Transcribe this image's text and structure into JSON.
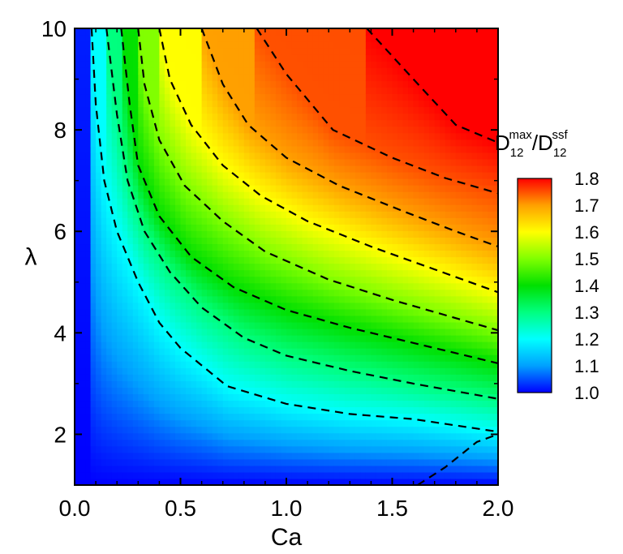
{
  "chart_data": {
    "type": "heatmap",
    "title": "",
    "xlabel": "Ca",
    "ylabel": "λ",
    "xlim": [
      0.0,
      2.0
    ],
    "ylim": [
      1,
      10
    ],
    "x_ticks": [
      "0.0",
      "0.5",
      "1.0",
      "1.5",
      "2.0"
    ],
    "x_tick_values": [
      0.0,
      0.5,
      1.0,
      1.5,
      2.0
    ],
    "y_ticks": [
      "2",
      "4",
      "6",
      "8",
      "10"
    ],
    "y_tick_values": [
      2,
      4,
      6,
      8,
      10
    ],
    "colorbar": {
      "title_main": "D",
      "title_sub1": "12",
      "title_sup1": "max",
      "title_slash": "/D",
      "title_sub2": "12",
      "title_sup2": "ssf",
      "range": [
        1.0,
        1.8
      ],
      "ticks": [
        "1.8",
        "1.7",
        "1.6",
        "1.5",
        "1.4",
        "1.3",
        "1.2",
        "1.1",
        "1.0"
      ],
      "tick_values": [
        1.8,
        1.7,
        1.6,
        1.5,
        1.4,
        1.3,
        1.2,
        1.1,
        1.0
      ],
      "colors": [
        "#0000ff",
        "#00a0ff",
        "#00ffff",
        "#00ff80",
        "#00e000",
        "#80ff00",
        "#ffff00",
        "#ffa000",
        "#ff0000"
      ]
    },
    "contours": [
      {
        "level": 1.1,
        "points": [
          [
            1.62,
            1.0
          ],
          [
            1.75,
            1.35
          ],
          [
            1.9,
            1.85
          ],
          [
            2.0,
            2.0
          ]
        ]
      },
      {
        "level": 1.2,
        "points": [
          [
            0.08,
            10.0
          ],
          [
            0.1,
            8.5
          ],
          [
            0.14,
            7.0
          ],
          [
            0.2,
            6.0
          ],
          [
            0.3,
            5.0
          ],
          [
            0.4,
            4.2
          ],
          [
            0.5,
            3.7
          ],
          [
            0.72,
            2.95
          ],
          [
            1.0,
            2.6
          ],
          [
            1.3,
            2.4
          ],
          [
            1.6,
            2.3
          ],
          [
            2.0,
            2.05
          ]
        ]
      },
      {
        "level": 1.3,
        "points": [
          [
            0.15,
            10.0
          ],
          [
            0.2,
            8.3
          ],
          [
            0.25,
            7.0
          ],
          [
            0.33,
            6.0
          ],
          [
            0.45,
            5.2
          ],
          [
            0.6,
            4.5
          ],
          [
            0.8,
            3.9
          ],
          [
            1.0,
            3.55
          ],
          [
            1.3,
            3.25
          ],
          [
            1.6,
            3.0
          ],
          [
            2.0,
            2.7
          ]
        ]
      },
      {
        "level": 1.4,
        "points": [
          [
            0.22,
            10.0
          ],
          [
            0.26,
            8.5
          ],
          [
            0.3,
            7.3
          ],
          [
            0.4,
            6.3
          ],
          [
            0.55,
            5.5
          ],
          [
            0.75,
            4.9
          ],
          [
            1.0,
            4.45
          ],
          [
            1.3,
            4.1
          ],
          [
            1.6,
            3.8
          ],
          [
            2.0,
            3.4
          ]
        ]
      },
      {
        "level": 1.5,
        "points": [
          [
            0.3,
            10.0
          ],
          [
            0.33,
            8.9
          ],
          [
            0.4,
            7.8
          ],
          [
            0.52,
            6.9
          ],
          [
            0.7,
            6.2
          ],
          [
            0.9,
            5.6
          ],
          [
            1.2,
            5.05
          ],
          [
            1.5,
            4.65
          ],
          [
            2.0,
            4.05
          ]
        ]
      },
      {
        "level": 1.6,
        "points": [
          [
            0.4,
            10.0
          ],
          [
            0.45,
            9.0
          ],
          [
            0.55,
            8.1
          ],
          [
            0.7,
            7.3
          ],
          [
            0.88,
            6.7
          ],
          [
            1.1,
            6.2
          ],
          [
            1.4,
            5.7
          ],
          [
            1.7,
            5.25
          ],
          [
            2.0,
            4.8
          ]
        ]
      },
      {
        "level": 1.7,
        "points": [
          [
            0.6,
            10.0
          ],
          [
            0.7,
            8.9
          ],
          [
            0.82,
            8.1
          ],
          [
            1.0,
            7.45
          ],
          [
            1.25,
            6.9
          ],
          [
            1.55,
            6.4
          ],
          [
            1.8,
            6.0
          ],
          [
            2.0,
            5.7
          ]
        ]
      },
      {
        "level": 1.75,
        "points": [
          [
            0.86,
            10.0
          ],
          [
            1.0,
            9.1
          ],
          [
            1.22,
            8.0
          ],
          [
            1.5,
            7.45
          ],
          [
            1.75,
            7.05
          ],
          [
            2.0,
            6.75
          ]
        ]
      },
      {
        "level": 1.8,
        "points": [
          [
            1.38,
            10.0
          ],
          [
            1.6,
            9.0
          ],
          [
            1.8,
            8.1
          ],
          [
            2.0,
            7.75
          ]
        ]
      }
    ]
  }
}
